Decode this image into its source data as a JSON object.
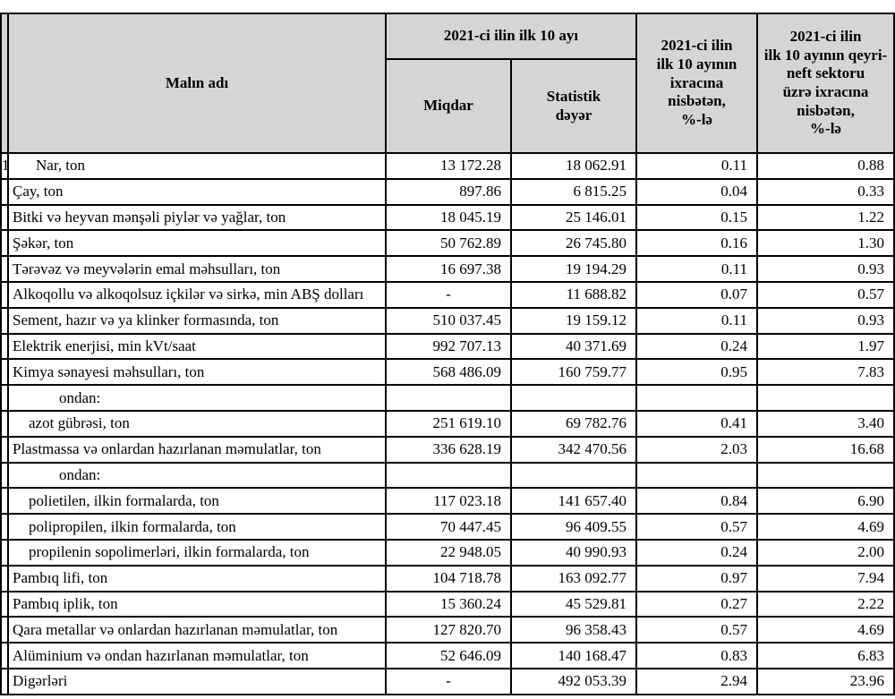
{
  "table": {
    "colors": {
      "header_bg": "#d5d5d5",
      "border": "#000000",
      "row_bg": "#ffffff"
    },
    "header": {
      "product_col": "Malın adı",
      "period_group": "2021-ci ilin ilk 10 ayı",
      "qty_col": "Miqdar",
      "value_col": "Statistik\ndəyər",
      "pct_export_col": "2021-ci ilin\nilk 10 ayının\nixracına\nnisbətən,\n%-lə",
      "pct_nonoil_col": "2021-ci ilin\nilk 10 ayının qeyri-\nneft sektoru\nüzrə ixracına\nnisbətən,\n%-lə"
    },
    "rows": [
      {
        "num": "1",
        "indent": "nar",
        "name": "Nar, ton",
        "miqdar": "13 172.28",
        "stat": "18 062.91",
        "pct1": "0.11",
        "pct2": "0.88"
      },
      {
        "num": "",
        "indent": "none",
        "name": "Çay, ton",
        "miqdar": "897.86",
        "stat": "6 815.25",
        "pct1": "0.04",
        "pct2": "0.33"
      },
      {
        "num": "",
        "indent": "none",
        "name": "Bitki və heyvan mənşəli piylər və yağlar, ton",
        "miqdar": "18 045.19",
        "stat": "25 146.01",
        "pct1": "0.15",
        "pct2": "1.22"
      },
      {
        "num": "",
        "indent": "none",
        "name": "Şəkər, ton",
        "miqdar": "50 762.89",
        "stat": "26 745.80",
        "pct1": "0.16",
        "pct2": "1.30"
      },
      {
        "num": "",
        "indent": "none",
        "name": "Tərəvəz və meyvələrin emal məhsulları, ton",
        "miqdar": "16 697.38",
        "stat": "19 194.29",
        "pct1": "0.11",
        "pct2": "0.93"
      },
      {
        "num": "",
        "indent": "none",
        "name": "Alkoqollu və alkoqolsuz içkilər və sirkə, min ABŞ dolları",
        "miqdar": "-",
        "stat": "11 688.82",
        "pct1": "0.07",
        "pct2": "0.57"
      },
      {
        "num": "",
        "indent": "none",
        "name": "Sement, hazır və ya klinker formasında, ton",
        "miqdar": "510 037.45",
        "stat": "19 159.12",
        "pct1": "0.11",
        "pct2": "0.93"
      },
      {
        "num": "",
        "indent": "none",
        "name": "Elektrik enerjisi, min kVt/saat",
        "miqdar": "992 707.13",
        "stat": "40 371.69",
        "pct1": "0.24",
        "pct2": "1.97"
      },
      {
        "num": "",
        "indent": "none",
        "name": "Kimya sənayesi məhsulları, ton",
        "miqdar": "568 486.09",
        "stat": "160 759.77",
        "pct1": "0.95",
        "pct2": "7.83"
      },
      {
        "num": "",
        "indent": "ondan",
        "name": "ondan:",
        "miqdar": "",
        "stat": "",
        "pct1": "",
        "pct2": ""
      },
      {
        "num": "",
        "indent": "sub",
        "name": "azot gübrəsi, ton",
        "miqdar": "251 619.10",
        "stat": "69 782.76",
        "pct1": "0.41",
        "pct2": "3.40"
      },
      {
        "num": "",
        "indent": "none",
        "name": "Plastmassa və onlardan hazırlanan məmulatlar, ton",
        "miqdar": "336 628.19",
        "stat": "342 470.56",
        "pct1": "2.03",
        "pct2": "16.68"
      },
      {
        "num": "",
        "indent": "ondan",
        "name": "ondan:",
        "miqdar": "",
        "stat": "",
        "pct1": "",
        "pct2": ""
      },
      {
        "num": "",
        "indent": "sub",
        "name": "polietilen, ilkin formalarda, ton",
        "miqdar": "117 023.18",
        "stat": "141 657.40",
        "pct1": "0.84",
        "pct2": "6.90"
      },
      {
        "num": "",
        "indent": "sub",
        "name": "polipropilen, ilkin formalarda, ton",
        "miqdar": "70 447.45",
        "stat": "96 409.55",
        "pct1": "0.57",
        "pct2": "4.69"
      },
      {
        "num": "",
        "indent": "sub",
        "name": "propilenin sopolimerləri, ilkin formalarda, ton",
        "miqdar": "22 948.05",
        "stat": "40 990.93",
        "pct1": "0.24",
        "pct2": "2.00"
      },
      {
        "num": "",
        "indent": "none",
        "name": "Pambıq lifi, ton",
        "miqdar": "104 718.78",
        "stat": "163 092.77",
        "pct1": "0.97",
        "pct2": "7.94"
      },
      {
        "num": "",
        "indent": "none",
        "name": "Pambıq iplik, ton",
        "miqdar": "15 360.24",
        "stat": "45 529.81",
        "pct1": "0.27",
        "pct2": "2.22"
      },
      {
        "num": "",
        "indent": "none",
        "name": "Qara metallar və onlardan hazırlanan məmulatlar, ton",
        "miqdar": "127 820.70",
        "stat": "96 358.43",
        "pct1": "0.57",
        "pct2": "4.69"
      },
      {
        "num": "",
        "indent": "none",
        "name": "Alüminium və ondan hazırlanan məmulatlar, ton",
        "miqdar": "52 646.09",
        "stat": "140 168.47",
        "pct1": "0.83",
        "pct2": "6.83"
      },
      {
        "num": "",
        "indent": "none",
        "name": "Digərləri",
        "miqdar": "-",
        "stat": "492 053.39",
        "pct1": "2.94",
        "pct2": "23.96"
      }
    ]
  }
}
